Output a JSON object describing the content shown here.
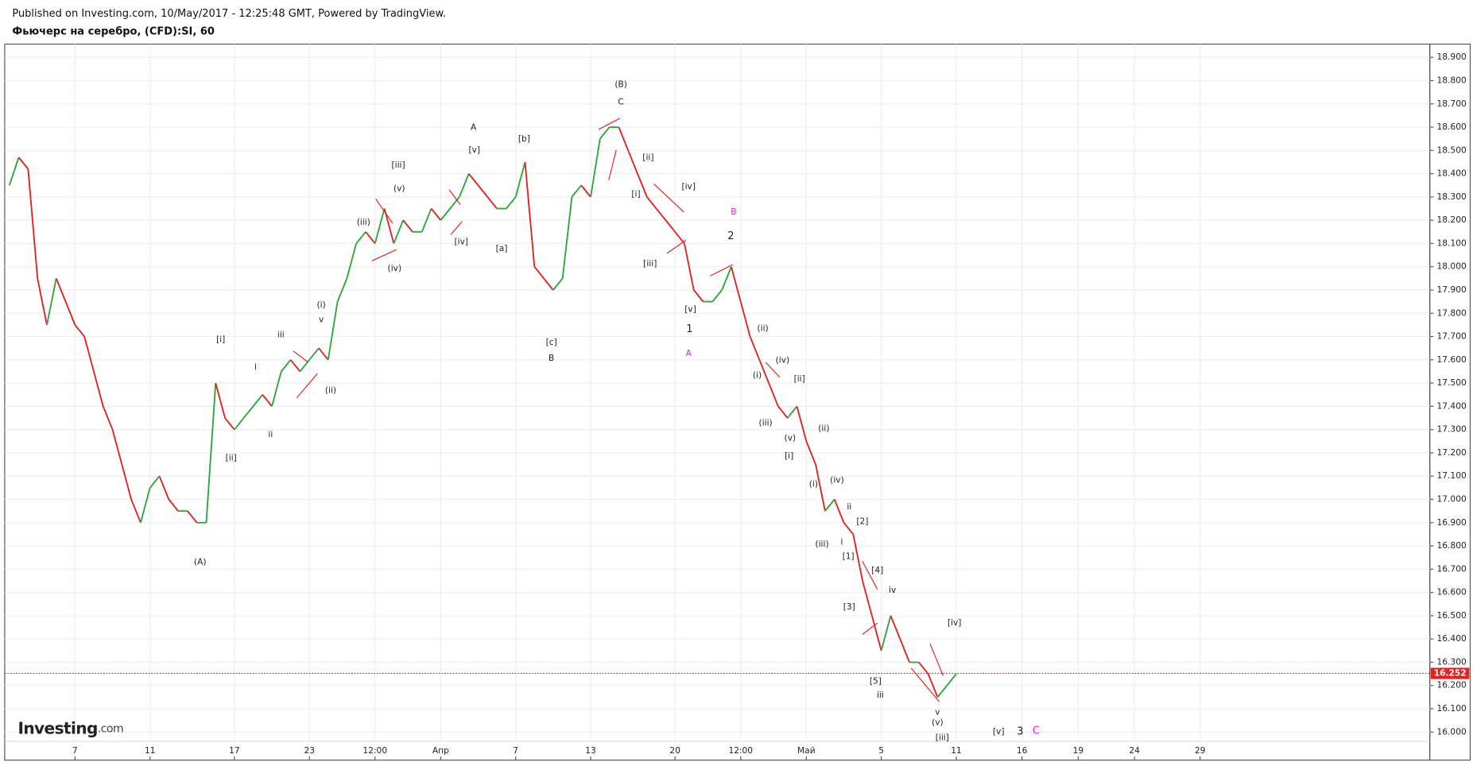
{
  "header": {
    "published": "Published on Investing.com, 10/May/2017 - 12:25:48 GMT, Powered by TradingView.",
    "symbol": "Фьючерс на серебро, (CFD):SI, 60"
  },
  "logo": "Investing",
  "logo_suffix": ".com",
  "chart_data": {
    "type": "line",
    "categories": [
      null,
      null,
      null,
      null,
      null,
      null,
      null,
      "7",
      null,
      null,
      null,
      null,
      null,
      null,
      null,
      "11",
      null,
      null,
      null,
      null,
      null,
      null,
      null,
      null,
      "17",
      null,
      null,
      null,
      null,
      null,
      null,
      null,
      "23",
      null,
      null,
      null,
      null,
      null,
      null,
      "12:00",
      null,
      null,
      null,
      null,
      null,
      null,
      "Апр",
      null,
      null,
      null,
      null,
      null,
      null,
      null,
      "7",
      null,
      null,
      null,
      null,
      null,
      null,
      null,
      "13",
      null,
      null,
      null,
      null,
      null,
      null,
      null,
      null,
      "20",
      null,
      null,
      null,
      null,
      null,
      null,
      "12:00",
      null,
      null,
      null,
      null,
      null,
      null,
      "Май",
      null,
      null,
      null,
      null,
      null,
      null,
      null,
      "5",
      null,
      null,
      null,
      null,
      null,
      null,
      null,
      "11",
      null,
      null,
      null,
      null,
      null,
      null,
      "16",
      null,
      null,
      null,
      null,
      null,
      "19",
      null,
      null,
      null,
      null,
      null,
      "24",
      null,
      null,
      null,
      null,
      null,
      null,
      "29",
      null,
      null,
      null,
      null,
      null,
      null,
      null,
      null,
      null,
      null,
      null,
      null,
      null,
      null,
      null,
      null,
      null,
      null,
      null,
      null,
      null,
      null,
      null,
      null
    ],
    "values": [
      18.35,
      18.47,
      18.42,
      17.95,
      17.75,
      17.95,
      17.85,
      17.75,
      17.7,
      17.55,
      17.4,
      17.3,
      17.15,
      17.0,
      16.9,
      17.05,
      17.1,
      17.0,
      16.95,
      16.95,
      16.9,
      16.9,
      17.5,
      17.35,
      17.3,
      17.35,
      17.4,
      17.45,
      17.4,
      17.55,
      17.6,
      17.55,
      17.6,
      17.65,
      17.6,
      17.85,
      17.95,
      18.1,
      18.15,
      18.1,
      18.25,
      18.1,
      18.2,
      18.15,
      18.15,
      18.25,
      18.2,
      18.25,
      18.3,
      18.4,
      18.35,
      18.3,
      18.25,
      18.25,
      18.3,
      18.45,
      18.0,
      17.95,
      17.9,
      17.95,
      18.3,
      18.35,
      18.3,
      18.55,
      18.6,
      18.6,
      18.5,
      18.4,
      18.3,
      18.25,
      18.2,
      18.15,
      18.1,
      17.9,
      17.85,
      17.85,
      17.9,
      18.0,
      17.85,
      17.7,
      17.6,
      17.5,
      17.4,
      17.35,
      17.4,
      17.25,
      17.15,
      16.95,
      17.0,
      16.9,
      16.85,
      16.65,
      16.5,
      16.35,
      16.5,
      16.4,
      16.3,
      16.3,
      16.25,
      16.15,
      16.2,
      16.25,
      null,
      null,
      null,
      null,
      null,
      null,
      null,
      null,
      null,
      null,
      null,
      null,
      null,
      null,
      null,
      null,
      null,
      null,
      null,
      null,
      null,
      null,
      null,
      null,
      null,
      null,
      null,
      null,
      null,
      null,
      null,
      null,
      null,
      null,
      null,
      null,
      null,
      null,
      null,
      null,
      null,
      null,
      null,
      null,
      null,
      null,
      null,
      null,
      null,
      null
    ],
    "up_color": "#2ea83a",
    "down_color": "#e02424",
    "ylim": [
      15.96,
      18.957
    ],
    "yticks": [
      {
        "value": 16.0,
        "label": "16.000"
      },
      {
        "value": 16.1,
        "label": "16.100"
      },
      {
        "value": 16.2,
        "label": "16.200"
      },
      {
        "value": 16.3,
        "label": "16.300"
      },
      {
        "value": 16.4,
        "label": "16.400"
      },
      {
        "value": 16.5,
        "label": "16.500"
      },
      {
        "value": 16.6,
        "label": "16.600"
      },
      {
        "value": 16.7,
        "label": "16.700"
      },
      {
        "value": 16.8,
        "label": "16.800"
      },
      {
        "value": 16.9,
        "label": "16.900"
      },
      {
        "value": 17.0,
        "label": "17.000"
      },
      {
        "value": 17.1,
        "label": "17.100"
      },
      {
        "value": 17.2,
        "label": "17.200"
      },
      {
        "value": 17.3,
        "label": "17.300"
      },
      {
        "value": 17.4,
        "label": "17.400"
      },
      {
        "value": 17.5,
        "label": "17.500"
      },
      {
        "value": 17.6,
        "label": "17.600"
      },
      {
        "value": 17.7,
        "label": "17.700"
      },
      {
        "value": 17.8,
        "label": "17.800"
      },
      {
        "value": 17.9,
        "label": "17.900"
      },
      {
        "value": 18.0,
        "label": "18.000"
      },
      {
        "value": 18.1,
        "label": "18.100"
      },
      {
        "value": 18.2,
        "label": "18.200"
      },
      {
        "value": 18.3,
        "label": "18.300"
      },
      {
        "value": 18.4,
        "label": "18.400"
      },
      {
        "value": 18.5,
        "label": "18.500"
      },
      {
        "value": 18.6,
        "label": "18.600"
      },
      {
        "value": 18.7,
        "label": "18.700"
      },
      {
        "value": 18.8,
        "label": "18.800"
      },
      {
        "value": 18.9,
        "label": "18.900"
      }
    ],
    "grid": true,
    "last_price": 16.252,
    "last_price_color": "#e02424",
    "annotations": [
      {
        "text": "(A)"
      },
      {
        "text": "[i]"
      },
      {
        "text": "[ii]"
      },
      {
        "text": "i"
      },
      {
        "text": "ii"
      },
      {
        "text": "iii"
      },
      {
        "text": "(i)"
      },
      {
        "text": "v"
      },
      {
        "text": "(ii)"
      },
      {
        "text": "(iii)"
      },
      {
        "text": "[iii]"
      },
      {
        "text": "(v)"
      },
      {
        "text": "(iv)"
      },
      {
        "text": "A"
      },
      {
        "text": "[v]"
      },
      {
        "text": "[iv]"
      },
      {
        "text": "[a]"
      },
      {
        "text": "[b]"
      },
      {
        "text": "[c]"
      },
      {
        "text": "B"
      },
      {
        "text": "(B)"
      },
      {
        "text": "C"
      },
      {
        "text": "[ii]"
      },
      {
        "text": "[i]"
      },
      {
        "text": "[iii]"
      },
      {
        "text": "[iv]"
      },
      {
        "text": "[v]"
      },
      {
        "text": "1"
      },
      {
        "text": "A",
        "color": "#e020e0"
      },
      {
        "text": "B",
        "color": "#e020e0"
      },
      {
        "text": "2"
      },
      {
        "text": "(ii)"
      },
      {
        "text": "(iv)"
      },
      {
        "text": "(i)"
      },
      {
        "text": "[ii]"
      },
      {
        "text": "(iii)"
      },
      {
        "text": "(v)"
      },
      {
        "text": "[i]"
      },
      {
        "text": "(ii)"
      },
      {
        "text": "(i)"
      },
      {
        "text": "(iv)"
      },
      {
        "text": "ii"
      },
      {
        "text": "[2]"
      },
      {
        "text": "(iii)"
      },
      {
        "text": "i"
      },
      {
        "text": "[1]"
      },
      {
        "text": "[4]"
      },
      {
        "text": "iv"
      },
      {
        "text": "[3]"
      },
      {
        "text": "[5]"
      },
      {
        "text": "iii"
      },
      {
        "text": "[iv]"
      },
      {
        "text": "v"
      },
      {
        "text": "(v)"
      },
      {
        "text": "[iii]"
      },
      {
        "text": "[v]"
      },
      {
        "text": "3"
      },
      {
        "text": "C",
        "color": "#e020e0"
      }
    ]
  }
}
